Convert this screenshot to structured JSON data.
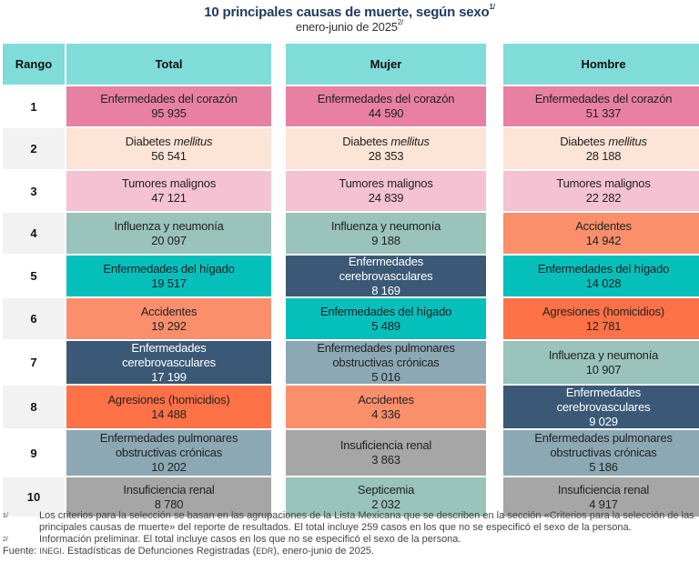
{
  "title": "10 principales causas de muerte, según sexo",
  "title_sup": "1/",
  "subtitle": "enero-junio de 2025",
  "subtitle_sup": "2/",
  "headers": {
    "rank": "Rango",
    "total": "Total",
    "mujer": "Mujer",
    "hombre": "Hombre"
  },
  "colors": {
    "header": "#80dcd9",
    "corazon": "#e880a3",
    "diabetes": "#fce4d6",
    "tumores": "#f4c2d3",
    "influenza": "#99c3bb",
    "higado": "#05bfbb",
    "accidentes": "#fb8f6c",
    "cerebro": "#3b5977",
    "agresiones": "#ff7146",
    "pulmonares": "#8ca8b4",
    "renal": "#a6a6a6",
    "septicemia": "#99c3bb"
  },
  "rows": [
    {
      "rank": "1",
      "total": {
        "name": "Enfermedades del corazón",
        "value": "95 935",
        "color": "corazon"
      },
      "mujer": {
        "name": "Enfermedades del corazón",
        "value": "44 590",
        "color": "corazon"
      },
      "hombre": {
        "name": "Enfermedades del corazón",
        "value": "51 337",
        "color": "corazon"
      }
    },
    {
      "rank": "2",
      "total": {
        "name": "Diabetes",
        "name_italic": "mellitus",
        "value": "56 541",
        "color": "diabetes"
      },
      "mujer": {
        "name": "Diabetes",
        "name_italic": "mellitus",
        "value": "28 353",
        "color": "diabetes"
      },
      "hombre": {
        "name": "Diabetes",
        "name_italic": "mellitus",
        "value": "28 188",
        "color": "diabetes"
      }
    },
    {
      "rank": "3",
      "total": {
        "name": "Tumores malignos",
        "value": "47 121",
        "color": "tumores"
      },
      "mujer": {
        "name": "Tumores malignos",
        "value": "24 839",
        "color": "tumores"
      },
      "hombre": {
        "name": "Tumores malignos",
        "value": "22 282",
        "color": "tumores"
      }
    },
    {
      "rank": "4",
      "total": {
        "name": "Influenza y neumonía",
        "value": "20 097",
        "color": "influenza"
      },
      "mujer": {
        "name": "Influenza y neumonía",
        "value": "9 188",
        "color": "influenza"
      },
      "hombre": {
        "name": "Accidentes",
        "value": "14 942",
        "color": "accidentes"
      }
    },
    {
      "rank": "5",
      "total": {
        "name": "Enfermedades del hígado",
        "value": "19 517",
        "color": "higado"
      },
      "mujer": {
        "name": "Enfermedades\ncerebrovasculares",
        "value": "8 169",
        "color": "cerebro"
      },
      "hombre": {
        "name": "Enfermedades del hígado",
        "value": "14 028",
        "color": "higado"
      }
    },
    {
      "rank": "6",
      "total": {
        "name": "Accidentes",
        "value": "19 292",
        "color": "accidentes"
      },
      "mujer": {
        "name": "Enfermedades del hígado",
        "value": "5 489",
        "color": "higado"
      },
      "hombre": {
        "name": "Agresiones (homicidios)",
        "value": "12 781",
        "color": "agresiones"
      }
    },
    {
      "rank": "7",
      "total": {
        "name": "Enfermedades\ncerebrovasculares",
        "value": "17 199",
        "color": "cerebro"
      },
      "mujer": {
        "name": "Enfermedades pulmonares\nobstructivas crónicas",
        "value": "5 016",
        "color": "pulmonares"
      },
      "hombre": {
        "name": "Influenza y neumonía",
        "value": "10 907",
        "color": "influenza"
      }
    },
    {
      "rank": "8",
      "total": {
        "name": "Agresiones (homicidios)",
        "value": "14 488",
        "color": "agresiones"
      },
      "mujer": {
        "name": "Accidentes",
        "value": "4 336",
        "color": "accidentes"
      },
      "hombre": {
        "name": "Enfermedades\ncerebrovasculares",
        "value": "9 029",
        "color": "cerebro"
      }
    },
    {
      "rank": "9",
      "total": {
        "name": "Enfermedades pulmonares\nobstructivas crónicas",
        "value": "10 202",
        "color": "pulmonares"
      },
      "mujer": {
        "name": "Insuficiencia renal",
        "value": "3 863",
        "color": "renal"
      },
      "hombre": {
        "name": "Enfermedades pulmonares\nobstructivas crónicas",
        "value": "5 186",
        "color": "pulmonares"
      }
    },
    {
      "rank": "10",
      "total": {
        "name": "Insuficiencia renal",
        "value": "8 780",
        "color": "renal"
      },
      "mujer": {
        "name": "Septicemia",
        "value": "2 032",
        "color": "septicemia"
      },
      "hombre": {
        "name": "Insuficiencia renal",
        "value": "4 917",
        "color": "renal"
      }
    }
  ],
  "notes": [
    {
      "mark": "1/",
      "text": "Los criterios para la selección se basan en las agrupaciones de la Lista Mexicana que se describen en la sección «Criterios para la selección de las principales causas de muerte» del reporte de resultados. El total incluye 259 casos en los que no se especificó el sexo de la persona."
    },
    {
      "mark": "2/",
      "text": "Información preliminar. El total incluye casos en los que no se especificó el sexo de la persona."
    }
  ],
  "source": {
    "label": "Fuente:",
    "org": "INEGI",
    "text1": ". Estadísticas de Defunciones Registradas (",
    "abbr": "EDR",
    "text2": "), enero-junio de 2025."
  }
}
